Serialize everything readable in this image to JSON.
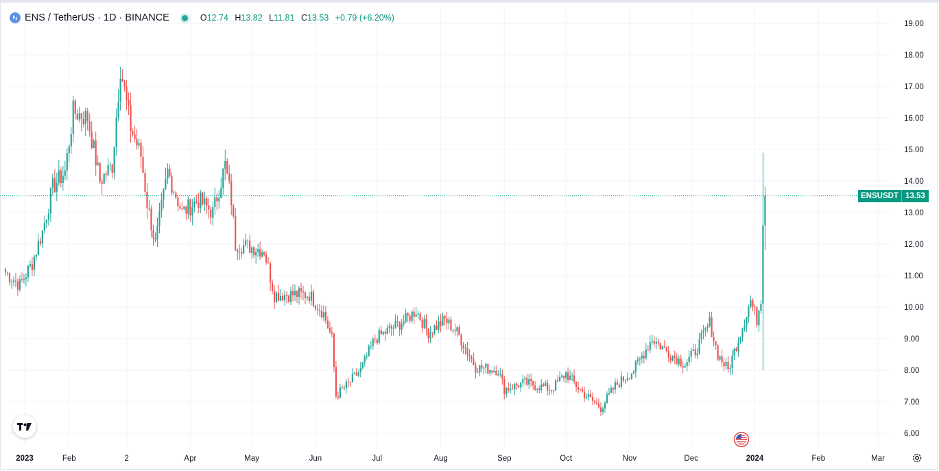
{
  "legend": {
    "title": "ENS / TetherUS · 1D · BINANCE",
    "open_label": "O",
    "open": "12.74",
    "high_label": "H",
    "high": "13.82",
    "low_label": "L",
    "low": "11.81",
    "close_label": "C",
    "close": "13.53",
    "change": "+0.79 (+6.20%)"
  },
  "price_tag": {
    "symbol": "ENSUSDT",
    "value": "13.53"
  },
  "colors": {
    "up": "#26a69a",
    "down": "#ef5350",
    "grid": "#f0f3fa",
    "text": "#131722",
    "last_price_line": "#089981"
  },
  "icons": {
    "symbol": "ens-logo-icon",
    "logo": "tradingview-logo-icon",
    "events": "us-flag-icon",
    "settings": "gear-icon"
  },
  "chart_data": {
    "type": "candlestick",
    "y_ticks": [
      "19.00",
      "18.00",
      "17.00",
      "16.00",
      "15.00",
      "14.00",
      "13.00",
      "12.00",
      "11.00",
      "10.00",
      "9.00",
      "8.00",
      "7.00",
      "6.00"
    ],
    "x_ticks": [
      "2023",
      "Feb",
      "2",
      "Apr",
      "May",
      "Jun",
      "Jul",
      "Aug",
      "Sep",
      "Oct",
      "Nov",
      "Dec",
      "2024",
      "Feb",
      "Mar"
    ],
    "bold_x_ticks": [
      "2023",
      "2024"
    ],
    "ylim": [
      5.6,
      19.5
    ],
    "last_price": 13.53,
    "series_anchors": [
      {
        "date": "2023-01-01",
        "close": 11.1
      },
      {
        "date": "2023-01-08",
        "close": 10.7
      },
      {
        "date": "2023-01-14",
        "close": 11.4
      },
      {
        "date": "2023-01-19",
        "close": 12.4
      },
      {
        "date": "2023-01-24",
        "close": 13.8
      },
      {
        "date": "2023-01-30",
        "close": 14.3
      },
      {
        "date": "2023-02-03",
        "close": 16.2
      },
      {
        "date": "2023-02-10",
        "close": 16.0
      },
      {
        "date": "2023-02-16",
        "close": 14.0
      },
      {
        "date": "2023-02-22",
        "close": 14.5
      },
      {
        "date": "2023-02-26",
        "close": 17.6
      },
      {
        "date": "2023-03-03",
        "close": 15.7
      },
      {
        "date": "2023-03-08",
        "close": 14.8
      },
      {
        "date": "2023-03-11",
        "close": 13.3
      },
      {
        "date": "2023-03-15",
        "close": 12.0
      },
      {
        "date": "2023-03-21",
        "close": 14.3
      },
      {
        "date": "2023-03-28",
        "close": 13.0
      },
      {
        "date": "2023-04-05",
        "close": 13.4
      },
      {
        "date": "2023-04-12",
        "close": 13.0
      },
      {
        "date": "2023-04-18",
        "close": 14.5
      },
      {
        "date": "2023-04-21",
        "close": 13.4
      },
      {
        "date": "2023-04-23",
        "close": 12.0
      },
      {
        "date": "2023-05-01",
        "close": 11.9
      },
      {
        "date": "2023-05-07",
        "close": 11.8
      },
      {
        "date": "2023-05-12",
        "close": 10.4
      },
      {
        "date": "2023-05-20",
        "close": 10.4
      },
      {
        "date": "2023-05-29",
        "close": 10.4
      },
      {
        "date": "2023-06-05",
        "close": 9.8
      },
      {
        "date": "2023-06-09",
        "close": 9.0
      },
      {
        "date": "2023-06-11",
        "close": 7.2
      },
      {
        "date": "2023-06-16",
        "close": 7.5
      },
      {
        "date": "2023-06-23",
        "close": 8.0
      },
      {
        "date": "2023-06-30",
        "close": 9.0
      },
      {
        "date": "2023-07-05",
        "close": 9.2
      },
      {
        "date": "2023-07-15",
        "close": 9.6
      },
      {
        "date": "2023-07-20",
        "close": 9.9
      },
      {
        "date": "2023-07-26",
        "close": 9.2
      },
      {
        "date": "2023-08-03",
        "close": 9.6
      },
      {
        "date": "2023-08-09",
        "close": 9.2
      },
      {
        "date": "2023-08-18",
        "close": 8.1
      },
      {
        "date": "2023-08-29",
        "close": 8.0
      },
      {
        "date": "2023-09-01",
        "close": 7.4
      },
      {
        "date": "2023-09-11",
        "close": 7.6
      },
      {
        "date": "2023-09-24",
        "close": 7.4
      },
      {
        "date": "2023-10-01",
        "close": 7.9
      },
      {
        "date": "2023-10-09",
        "close": 7.3
      },
      {
        "date": "2023-10-18",
        "close": 6.8
      },
      {
        "date": "2023-10-25",
        "close": 7.5
      },
      {
        "date": "2023-11-03",
        "close": 8.0
      },
      {
        "date": "2023-11-12",
        "close": 9.0
      },
      {
        "date": "2023-11-21",
        "close": 8.5
      },
      {
        "date": "2023-11-28",
        "close": 8.2
      },
      {
        "date": "2023-12-03",
        "close": 8.6
      },
      {
        "date": "2023-12-10",
        "close": 9.5
      },
      {
        "date": "2023-12-14",
        "close": 8.5
      },
      {
        "date": "2023-12-19",
        "close": 8.0
      },
      {
        "date": "2023-12-25",
        "close": 9.2
      },
      {
        "date": "2023-12-30",
        "close": 10.2
      },
      {
        "date": "2024-01-02",
        "close": 9.6
      },
      {
        "date": "2024-01-04",
        "close": 10.3
      },
      {
        "date": "2024-01-05",
        "close": 12.8
      },
      {
        "date": "2024-01-06",
        "close": 13.53
      }
    ]
  }
}
